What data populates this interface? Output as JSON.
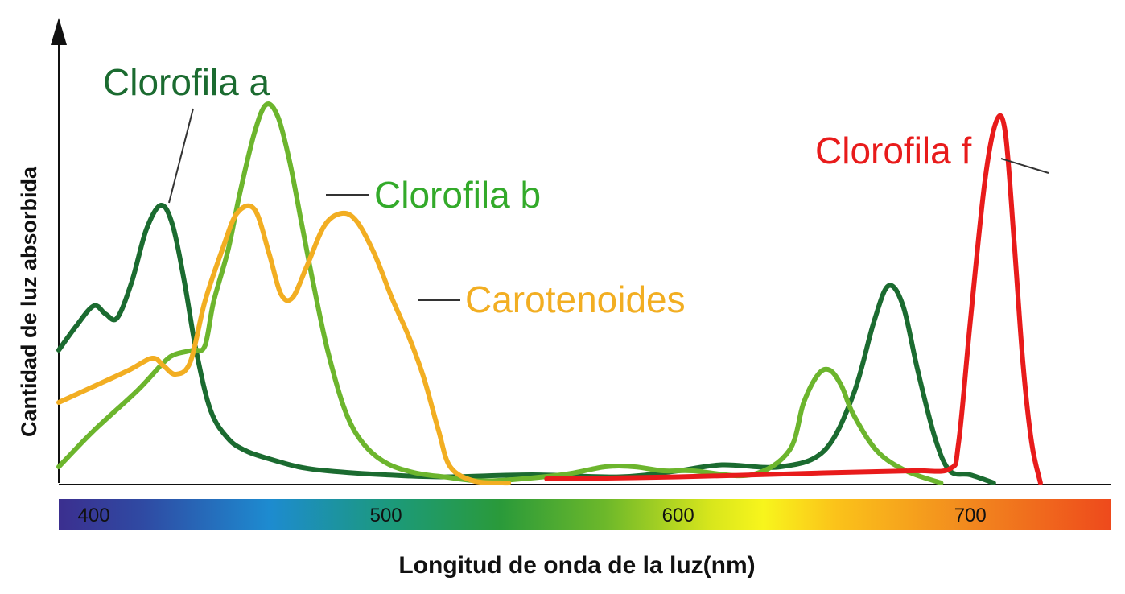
{
  "chart_data": {
    "type": "line",
    "xlabel": "Longitud de onda  de la luz(nm)",
    "ylabel": "Cantidad de luz absorbida",
    "xlim": [
      388,
      748
    ],
    "ylim": [
      0,
      100
    ],
    "x_ticks": [
      400,
      500,
      600,
      700
    ],
    "spectrum_bar": true,
    "colors": {
      "Clorofila a": "#1b6b30",
      "Clorofila b": "#6cb52d",
      "Carotenoides": "#f2ae22",
      "Clorofila f": "#e81b1b"
    },
    "series": [
      {
        "name": "Clorofila a",
        "color": "#1b6b30",
        "x": [
          388,
          394,
          400,
          404,
          408,
          413,
          418,
          423,
          427,
          431,
          435,
          440,
          446,
          452,
          460,
          470,
          480,
          500,
          520,
          550,
          580,
          600,
          615,
          635,
          650,
          660,
          667,
          672,
          677,
          682,
          688,
          693,
          700,
          708
        ],
        "y": [
          33,
          39,
          44,
          42,
          41,
          50,
          63,
          69,
          64,
          50,
          33,
          18,
          11,
          8,
          6,
          4,
          3,
          2,
          1.5,
          2,
          1.5,
          3,
          4.5,
          4,
          8,
          22,
          40,
          49,
          44,
          28,
          11,
          3,
          2,
          0
        ]
      },
      {
        "name": "Clorofila b",
        "color": "#6cb52d",
        "x": [
          388,
          400,
          415,
          424,
          428,
          434,
          438,
          441,
          446,
          450,
          455,
          459,
          463,
          467,
          471,
          475,
          480,
          486,
          492,
          500,
          510,
          520,
          535,
          560,
          575,
          585,
          595,
          605,
          625,
          638,
          643,
          648,
          652,
          656,
          660,
          668,
          678,
          690
        ],
        "y": [
          4,
          13,
          23,
          30,
          32,
          33,
          34,
          45,
          58,
          72,
          87,
          94,
          91,
          80,
          65,
          50,
          33,
          18,
          10,
          5,
          2.5,
          1.5,
          0.5,
          2,
          4,
          4,
          3,
          3,
          2,
          8,
          20,
          27,
          28,
          24,
          17,
          8,
          3,
          0
        ]
      },
      {
        "name": "Carotenoides",
        "color": "#f2ae22",
        "x": [
          388,
          400,
          412,
          420,
          424,
          428,
          433,
          438,
          444,
          449,
          455,
          460,
          464,
          468,
          473,
          479,
          485,
          490,
          496,
          502,
          508,
          513,
          518,
          522,
          530,
          540,
          542
        ],
        "y": [
          20,
          24,
          28,
          31,
          29,
          27,
          30,
          45,
          58,
          67,
          68,
          57,
          47,
          46,
          54,
          64,
          67,
          65,
          57,
          46,
          36,
          26,
          13,
          4,
          0.5,
          0,
          0
        ]
      },
      {
        "name": "Clorofila f",
        "color": "#e81b1b",
        "x": [
          555,
          600,
          650,
          680,
          693,
          696,
          700,
          705,
          709,
          712,
          715,
          718,
          721,
          724
        ],
        "y": [
          1,
          1.5,
          2.5,
          3,
          3.5,
          10,
          40,
          75,
          90,
          87,
          60,
          30,
          10,
          0
        ]
      }
    ],
    "annotations": [
      {
        "text": "Clorofila a",
        "series": "Clorofila a"
      },
      {
        "text": "Clorofila b",
        "series": "Clorofila b"
      },
      {
        "text": "Carotenoides",
        "series": "Carotenoides"
      },
      {
        "text": "Clorofila f",
        "series": "Clorofila f"
      }
    ]
  }
}
